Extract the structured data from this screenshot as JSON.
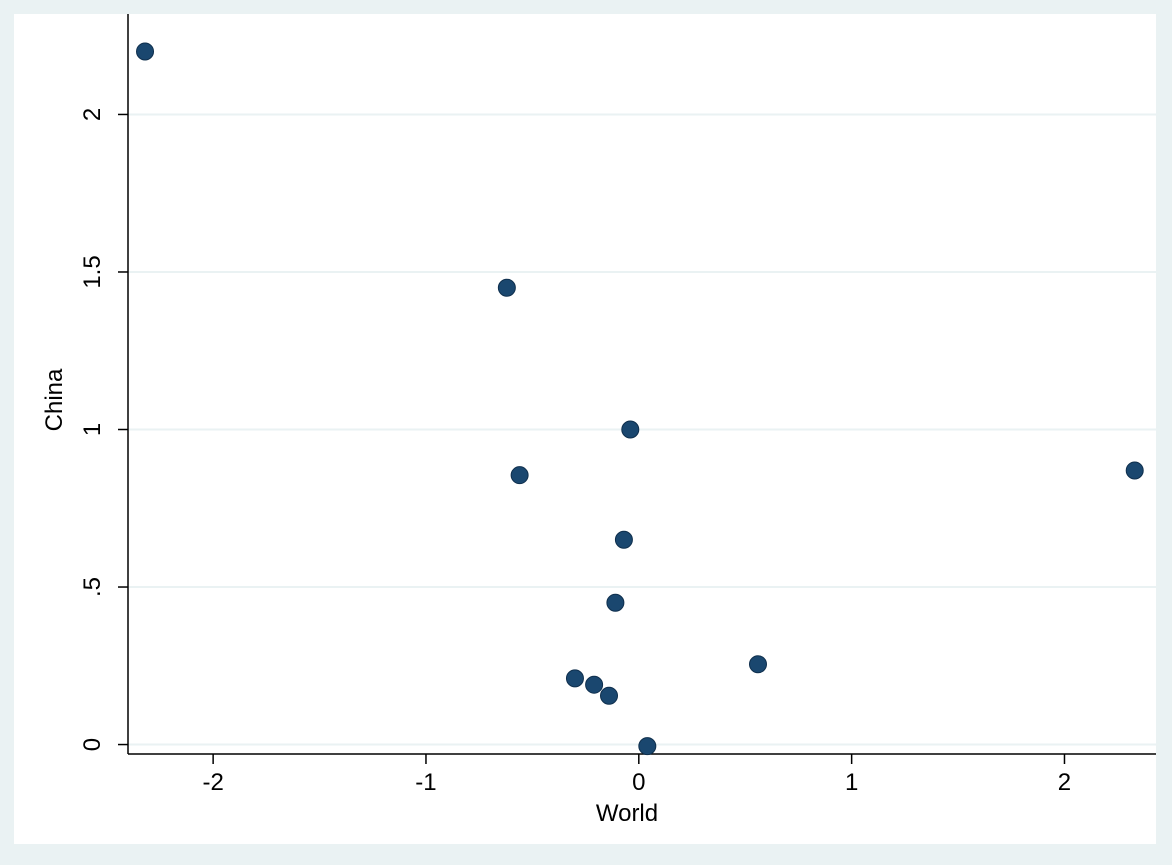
{
  "chart_data": {
    "type": "scatter",
    "title": "",
    "xlabel": "World",
    "ylabel": "China",
    "xlim": [
      -2.4,
      2.43
    ],
    "ylim": [
      -0.03,
      2.23
    ],
    "xticks": [
      -2,
      -1,
      0,
      1,
      2
    ],
    "xtick_labels": [
      "-2",
      "-1",
      "0",
      "1",
      "2"
    ],
    "yticks": [
      0,
      0.5,
      1,
      1.5,
      2
    ],
    "ytick_labels": [
      "0",
      ".5",
      "1",
      "1.5",
      "2"
    ],
    "grid": "horizontal",
    "legend": "none",
    "colors": {
      "outer_background": "#eaf2f3",
      "plot_background": "#ffffff",
      "gridline": "#eaf2f3",
      "marker": "#1a476f",
      "axis": "#000000"
    },
    "points": [
      {
        "x": -2.32,
        "y": 2.2
      },
      {
        "x": -0.62,
        "y": 1.45
      },
      {
        "x": -0.04,
        "y": 1.0
      },
      {
        "x": -0.56,
        "y": 0.855
      },
      {
        "x": 2.33,
        "y": 0.87
      },
      {
        "x": -0.07,
        "y": 0.65
      },
      {
        "x": -0.11,
        "y": 0.45
      },
      {
        "x": -0.3,
        "y": 0.21
      },
      {
        "x": -0.21,
        "y": 0.19
      },
      {
        "x": -0.14,
        "y": 0.155
      },
      {
        "x": 0.56,
        "y": 0.255
      },
      {
        "x": 0.04,
        "y": -0.005
      }
    ]
  }
}
